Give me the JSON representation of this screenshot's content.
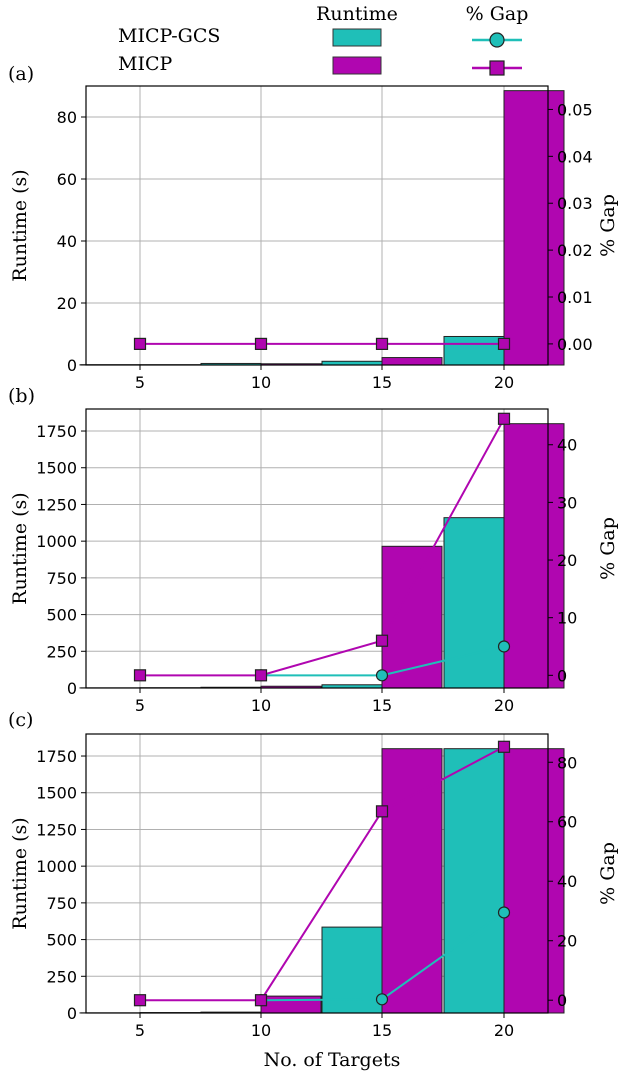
{
  "legend": {
    "runtime_header": "Runtime",
    "gap_header": "% Gap",
    "entries": [
      {
        "name": "MICP-GCS",
        "bar_color": "#1fbfb8",
        "line_color": "#1fbfb8",
        "marker": "circle"
      },
      {
        "name": "MICP",
        "bar_color": "#b006b0",
        "line_color": "#b006b0",
        "marker": "square"
      }
    ]
  },
  "xlabel": "No. of Targets",
  "chart_data": [
    {
      "panel_label": "(a)",
      "type": "bar",
      "categories": [
        "5",
        "10",
        "15",
        "20"
      ],
      "ylabel": "Runtime (s)",
      "y2label": "% Gap",
      "ylim": [
        0,
        90
      ],
      "yticks": [
        0,
        20,
        40,
        60,
        80
      ],
      "y2lim": [
        -0.0045,
        0.055
      ],
      "y2ticks": [
        0.0,
        0.01,
        0.02,
        0.03,
        0.04,
        0.05
      ],
      "y2ticklabels": [
        "0.00",
        "0.01",
        "0.02",
        "0.03",
        "0.04",
        "0.05"
      ],
      "series": [
        {
          "name": "MICP-GCS",
          "runtime": [
            0.1,
            0.5,
            1.2,
            9.2
          ],
          "gap": [
            null,
            null,
            null,
            null
          ]
        },
        {
          "name": "MICP",
          "runtime": [
            0.1,
            0.4,
            2.4,
            88.5
          ],
          "gap": [
            0,
            0,
            0,
            0
          ]
        }
      ]
    },
    {
      "panel_label": "(b)",
      "type": "bar",
      "categories": [
        "5",
        "10",
        "15",
        "20"
      ],
      "ylabel": "Runtime (s)",
      "y2label": "% Gap",
      "ylim": [
        0,
        1900
      ],
      "yticks": [
        0,
        250,
        500,
        750,
        1000,
        1250,
        1500,
        1750
      ],
      "y2lim": [
        -2.2,
        46.2
      ],
      "y2ticks": [
        0,
        10,
        20,
        30,
        40
      ],
      "y2ticklabels": [
        "0",
        "10",
        "20",
        "30",
        "40"
      ],
      "series": [
        {
          "name": "MICP-GCS",
          "runtime": [
            1,
            5,
            22,
            1160
          ],
          "gap": [
            null,
            0,
            0,
            5
          ]
        },
        {
          "name": "MICP",
          "runtime": [
            2,
            12,
            965,
            1800
          ],
          "gap": [
            0,
            0,
            6,
            44.5
          ]
        }
      ]
    },
    {
      "panel_label": "(c)",
      "type": "bar",
      "categories": [
        "5",
        "10",
        "15",
        "20"
      ],
      "ylabel": "Runtime (s)",
      "y2label": "% Gap",
      "ylim": [
        0,
        1900
      ],
      "yticks": [
        0,
        250,
        500,
        750,
        1000,
        1250,
        1500,
        1750
      ],
      "y2lim": [
        -4.3,
        89.5
      ],
      "y2ticks": [
        0,
        20,
        40,
        60,
        80
      ],
      "y2ticklabels": [
        "0",
        "20",
        "40",
        "60",
        "80"
      ],
      "series": [
        {
          "name": "MICP-GCS",
          "runtime": [
            1,
            6,
            585,
            1800
          ],
          "gap": [
            null,
            0,
            0.3,
            29.5
          ]
        },
        {
          "name": "MICP",
          "runtime": [
            3,
            115,
            1800,
            1800
          ],
          "gap": [
            0,
            0,
            63.5,
            85.2
          ]
        }
      ]
    }
  ]
}
